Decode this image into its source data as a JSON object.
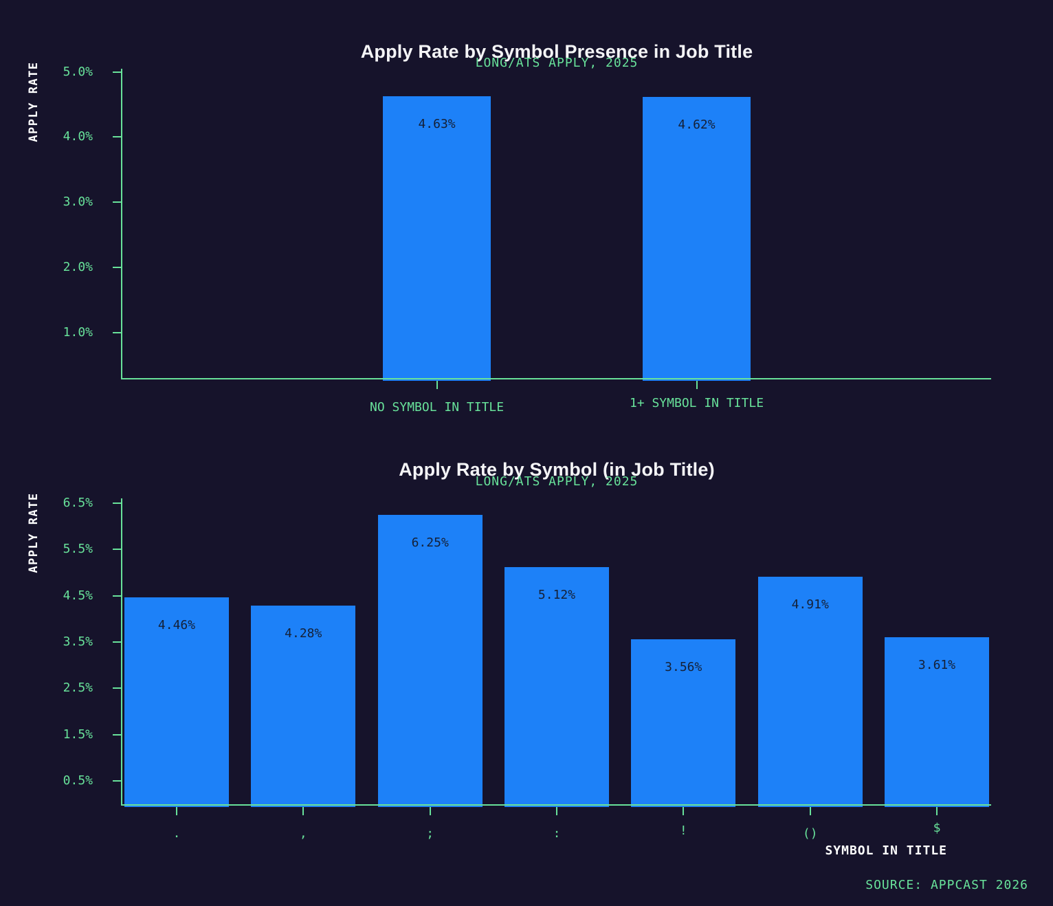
{
  "colors": {
    "background": "#16132b",
    "accent_green": "#68e29a",
    "bar_blue": "#1d81f8",
    "title_white": "#f4f4f6",
    "bar_label_navy": "#152036"
  },
  "source": {
    "text": "SOURCE: APPCAST 2026"
  },
  "chart_data": [
    {
      "type": "bar",
      "title": "Apply Rate by Symbol Presence in Job Title",
      "subtitle": "LONG/ATS APPLY, 2025",
      "ylabel": "APPLY RATE",
      "xlabel": "",
      "categories": [
        "NO SYMBOL IN TITLE",
        "1+ SYMBOL IN TITLE"
      ],
      "values": [
        4.63,
        4.62
      ],
      "value_labels": [
        "4.63%",
        "4.62%"
      ],
      "ytick_values": [
        5.0,
        4.0,
        3.0,
        2.0,
        1.0
      ],
      "ytick_labels": [
        "5.0%",
        "4.0%",
        "3.0%",
        "2.0%",
        "1.0%"
      ],
      "ylim": [
        0.3,
        5.05
      ],
      "grid": false,
      "legend": "none",
      "bar_color": "#1d81f8",
      "layout": {
        "bar_width_frac": 0.124,
        "bar_centers_frac": [
          0.362,
          0.661
        ]
      }
    },
    {
      "type": "bar",
      "title": "Apply Rate by Symbol (in Job Title)",
      "subtitle": "LONG/ATS APPLY, 2025",
      "ylabel": "APPLY RATE",
      "xlabel": "SYMBOL IN TITLE",
      "categories": [
        ".",
        ",",
        ";",
        ":",
        "!",
        "()",
        "$"
      ],
      "values": [
        4.46,
        4.28,
        6.25,
        5.12,
        3.56,
        4.91,
        3.61
      ],
      "value_labels": [
        "4.46%",
        "4.28%",
        "6.25%",
        "5.12%",
        "3.56%",
        "4.91%",
        "3.61%"
      ],
      "ytick_values": [
        6.5,
        5.5,
        4.5,
        3.5,
        2.5,
        1.5,
        0.5
      ],
      "ytick_labels": [
        "6.5%",
        "5.5%",
        "4.5%",
        "3.5%",
        "2.5%",
        "1.5%",
        "0.5%"
      ],
      "ylim": [
        0,
        6.6
      ],
      "grid": false,
      "legend": "none",
      "bar_color": "#1d81f8",
      "layout": {
        "bar_width_frac": 0.1203,
        "bar_centers_frac": [
          0.0625,
          0.2083,
          0.3542,
          0.5,
          0.6458,
          0.7917,
          0.9375
        ]
      }
    }
  ]
}
